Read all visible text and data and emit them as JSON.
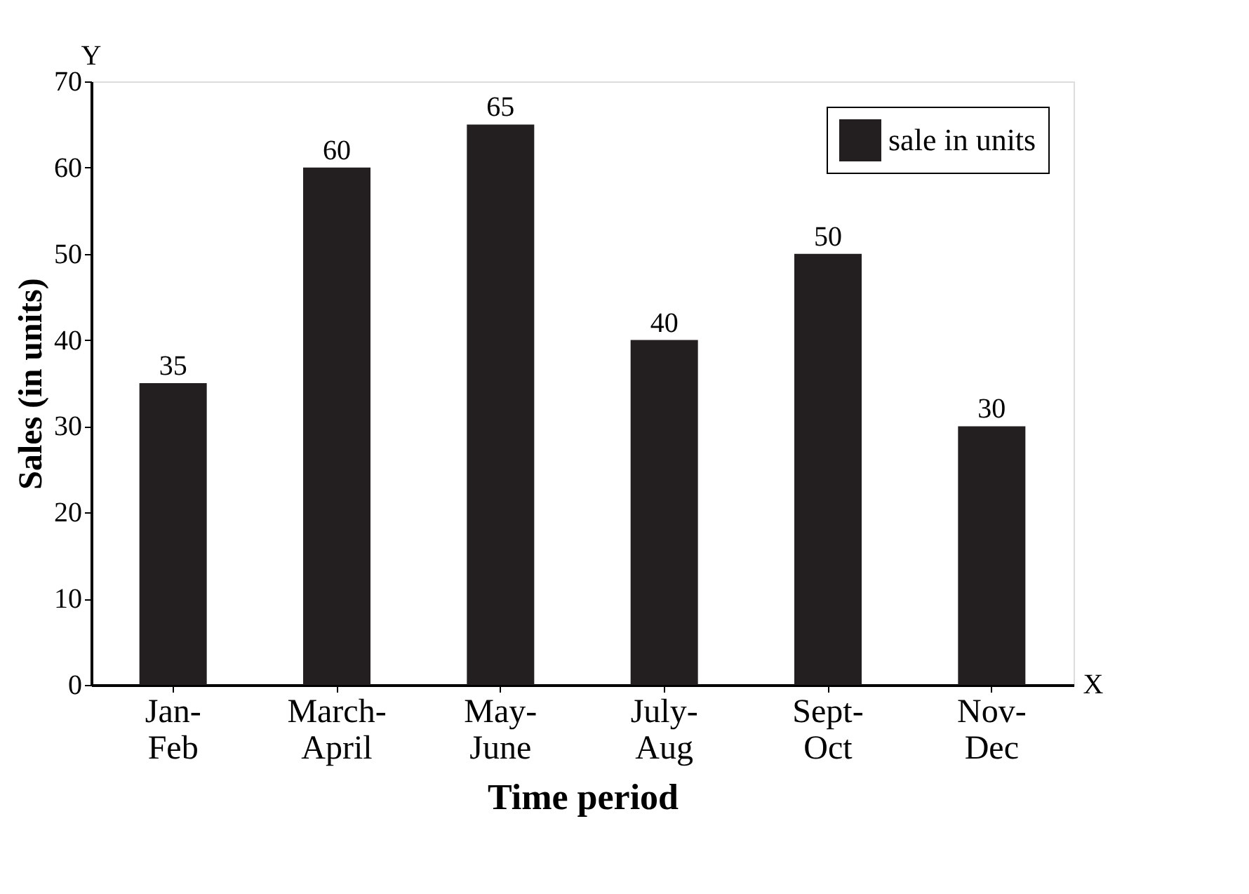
{
  "chart_data": {
    "type": "bar",
    "xlabel": "Time period",
    "ylabel": "Sales (in units)",
    "categories": [
      "Jan-\nFeb",
      "March-\nApril",
      "May-\nJune",
      "July-\nAug",
      "Sept-\nOct",
      "Nov-\nDec"
    ],
    "series": [
      {
        "name": "sale in units",
        "color": "#231f20",
        "values": [
          35,
          60,
          65,
          40,
          50,
          30
        ]
      }
    ],
    "ylim": [
      0,
      70
    ],
    "yticks": [
      0,
      10,
      20,
      30,
      40,
      50,
      60,
      70
    ],
    "data_labels": true,
    "grid": false,
    "legend": "top right",
    "annotations": [
      "Y",
      "X"
    ]
  }
}
